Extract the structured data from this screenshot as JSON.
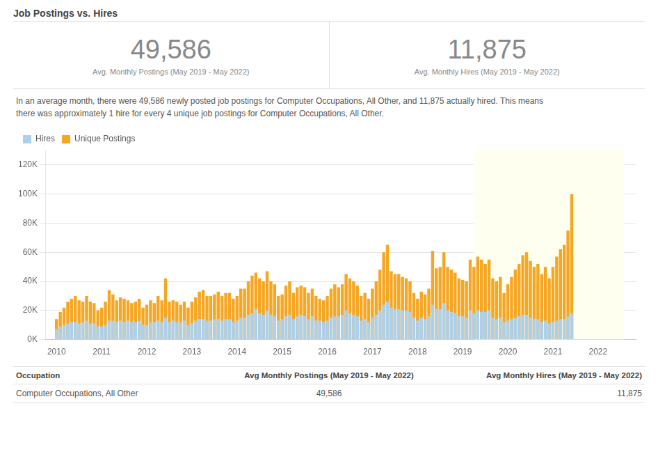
{
  "chart_data": {
    "type": "bar",
    "title": "Job Postings vs. Hires",
    "stats": [
      {
        "value": "49,586",
        "label": "Avg. Monthly Postings (May 2019 - May 2022)"
      },
      {
        "value": "11,875",
        "label": "Avg. Monthly Hires (May 2019 - May 2022)"
      }
    ],
    "description": [
      "In an average month, there were 49,586 newly posted job postings for Computer Occupations, All Other, and 11,875 actually hired. This means",
      "there was approximately 1 hire for every 4 unique job postings for Computer Occupations, All Other."
    ],
    "x": [
      2010,
      2010.083333,
      2010.166667,
      2010.25,
      2010.333333,
      2010.416667,
      2010.5,
      2010.583333,
      2010.666667,
      2010.75,
      2010.833333,
      2010.916667,
      2011,
      2011.083333,
      2011.166667,
      2011.25,
      2011.333333,
      2011.416667,
      2011.5,
      2011.583333,
      2011.666667,
      2011.75,
      2011.833333,
      2011.916667,
      2012,
      2012.083333,
      2012.166667,
      2012.25,
      2012.333333,
      2012.416667,
      2012.5,
      2012.583333,
      2012.666667,
      2012.75,
      2012.833333,
      2012.916667,
      2013,
      2013.083333,
      2013.166667,
      2013.25,
      2013.333333,
      2013.416667,
      2013.5,
      2013.583333,
      2013.666667,
      2013.75,
      2013.833333,
      2013.916667,
      2014,
      2014.083333,
      2014.166667,
      2014.25,
      2014.333333,
      2014.416667,
      2014.5,
      2014.583333,
      2014.666667,
      2014.75,
      2014.833333,
      2014.916667,
      2015,
      2015.083333,
      2015.166667,
      2015.25,
      2015.333333,
      2015.416667,
      2015.5,
      2015.583333,
      2015.666667,
      2015.75,
      2015.833333,
      2015.916667,
      2016,
      2016.083333,
      2016.166667,
      2016.25,
      2016.333333,
      2016.416667,
      2016.5,
      2016.583333,
      2016.666667,
      2016.75,
      2016.833333,
      2016.916667,
      2017,
      2017.083333,
      2017.166667,
      2017.25,
      2017.333333,
      2017.416667,
      2017.5,
      2017.583333,
      2017.666667,
      2017.75,
      2017.833333,
      2017.916667,
      2018,
      2018.083333,
      2018.166667,
      2018.25,
      2018.333333,
      2018.416667,
      2018.5,
      2018.583333,
      2018.666667,
      2018.75,
      2018.833333,
      2018.916667,
      2019,
      2019.083333,
      2019.166667,
      2019.25,
      2019.333333,
      2019.416667,
      2019.5,
      2019.583333,
      2019.666667,
      2019.75,
      2019.833333,
      2019.916667,
      2020,
      2020.083333,
      2020.166667,
      2020.25,
      2020.333333,
      2020.416667,
      2020.5,
      2020.583333,
      2020.666667,
      2020.75,
      2020.833333,
      2020.916667,
      2021,
      2021.083333,
      2021.166667,
      2021.25,
      2021.333333,
      2021.416667
    ],
    "series": [
      {
        "name": "Unique Postings",
        "color": "#f5a623",
        "values": [
          14000,
          19000,
          22000,
          26000,
          28000,
          30000,
          27000,
          26000,
          30000,
          26000,
          25000,
          20000,
          22000,
          26000,
          34000,
          31000,
          27000,
          29000,
          28000,
          27000,
          25000,
          26000,
          28000,
          22000,
          24000,
          27000,
          25000,
          30000,
          27000,
          42000,
          26000,
          27000,
          26000,
          24000,
          26000,
          22000,
          26000,
          29000,
          33000,
          34000,
          30000,
          30000,
          31000,
          33000,
          30000,
          32000,
          32000,
          28000,
          30000,
          35000,
          35000,
          40000,
          44000,
          46000,
          42000,
          40000,
          47000,
          40000,
          38000,
          30000,
          31000,
          37000,
          40000,
          32000,
          36000,
          37000,
          36000,
          32000,
          35000,
          30000,
          28000,
          27000,
          30000,
          35000,
          38000,
          36000,
          38000,
          45000,
          42000,
          40000,
          37000,
          30000,
          32000,
          28000,
          35000,
          40000,
          48000,
          60000,
          65000,
          47000,
          45000,
          45000,
          43000,
          42000,
          40000,
          32000,
          28000,
          33000,
          31000,
          35000,
          61000,
          49000,
          50000,
          60000,
          50000,
          48000,
          46000,
          42000,
          41000,
          40000,
          55000,
          50000,
          57000,
          55000,
          52000,
          55000,
          42000,
          40000,
          43000,
          32000,
          38000,
          43000,
          48000,
          52000,
          58000,
          60000,
          54000,
          50000,
          52000,
          45000,
          50000,
          42000,
          50000,
          57000,
          62000,
          65000,
          75000,
          100000
        ]
      },
      {
        "name": "Hires",
        "color": "#aecfe8",
        "values": [
          7000,
          9000,
          10000,
          11000,
          12000,
          12000,
          11000,
          12000,
          13000,
          11000,
          11000,
          9000,
          9000,
          10000,
          13000,
          13000,
          12000,
          13000,
          12000,
          13000,
          12000,
          12000,
          13000,
          10000,
          10000,
          12000,
          12000,
          13000,
          12000,
          15000,
          12000,
          13000,
          12000,
          12000,
          13000,
          10000,
          11000,
          13000,
          14000,
          14000,
          13000,
          13000,
          14000,
          14000,
          13000,
          14000,
          14000,
          12000,
          13000,
          15000,
          15000,
          17000,
          18000,
          21000,
          18000,
          17000,
          20000,
          17000,
          16000,
          13000,
          14000,
          16000,
          17000,
          14000,
          16000,
          17000,
          16000,
          14000,
          16000,
          13000,
          13000,
          12000,
          13000,
          15000,
          16000,
          16000,
          17000,
          20000,
          18000,
          17000,
          16000,
          13000,
          14000,
          12000,
          15000,
          17000,
          20000,
          24000,
          26000,
          22000,
          21000,
          21000,
          20000,
          20000,
          19000,
          15000,
          13000,
          15000,
          14000,
          16000,
          24000,
          21000,
          21000,
          25000,
          20000,
          19000,
          18000,
          16000,
          16000,
          15000,
          20000,
          18000,
          20000,
          19000,
          19000,
          20000,
          15000,
          14000,
          15000,
          12000,
          13000,
          14000,
          15000,
          16000,
          17000,
          17000,
          15000,
          14000,
          14000,
          12000,
          13000,
          11000,
          12000,
          13000,
          14000,
          14000,
          16000,
          18000
        ]
      }
    ],
    "xlim": [
      2009.75,
      2022.85
    ],
    "xticks": [
      2010,
      2011,
      2012,
      2013,
      2014,
      2015,
      2016,
      2017,
      2018,
      2019,
      2020,
      2021,
      2022
    ],
    "ylim": [
      0,
      130000
    ],
    "yticks": [
      {
        "value": 0,
        "label": "0K"
      },
      {
        "value": 20000,
        "label": "20K"
      },
      {
        "value": 40000,
        "label": "40K"
      },
      {
        "value": 60000,
        "label": "60K"
      },
      {
        "value": 80000,
        "label": "80K"
      },
      {
        "value": 100000,
        "label": "100K"
      },
      {
        "value": 120000,
        "label": "120K"
      }
    ],
    "grid": "y",
    "legend": "upper left",
    "highlight": {
      "start": 2019.25,
      "end": 2022.58,
      "color": "#fffff0"
    },
    "table": {
      "columns": [
        "Occupation",
        "Avg Monthly Postings (May 2019 - May 2022)",
        "Avg Monthly Hires (May 2019 - May 2022)"
      ],
      "rows": [
        [
          "Computer Occupations, All Other",
          "49,586",
          "11,875"
        ]
      ]
    }
  }
}
